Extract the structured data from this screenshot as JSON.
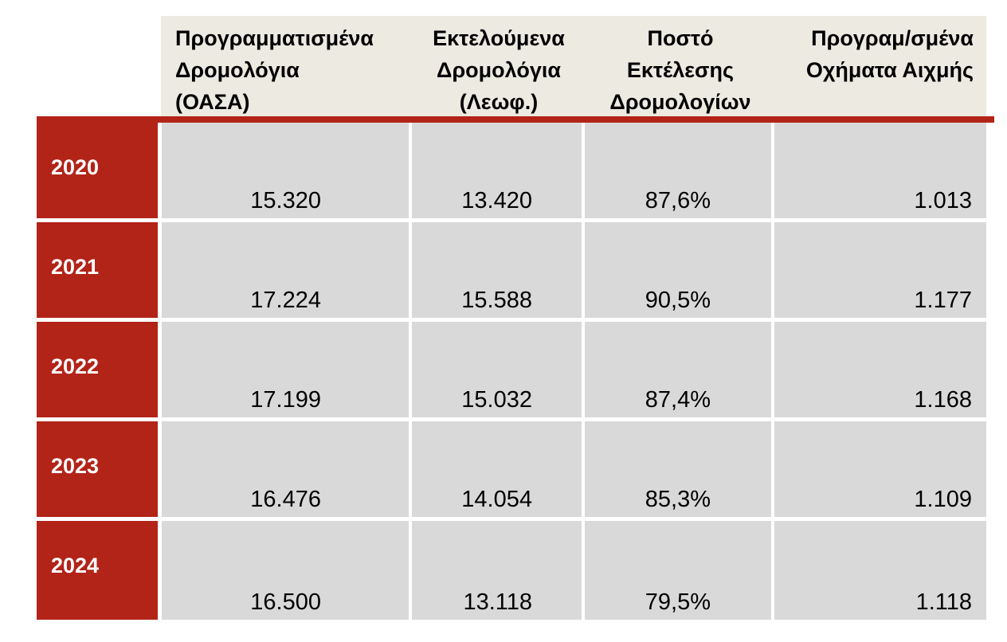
{
  "table": {
    "headers": [
      "Προγραμματισμένα\nΔρομολόγια\n(ΟΑΣΑ)",
      "Εκτελούμενα\nΔρομολόγια\n(Λεωφ.)",
      "Ποστό\nΕκτέλεσης\nΔρομολογίων",
      "Προγραμ/σμένα\nΟχήματα Αιχμής"
    ],
    "rows": [
      {
        "year": "2020",
        "values": [
          "15.320",
          "13.420",
          "87,6%",
          "1.013"
        ]
      },
      {
        "year": "2021",
        "values": [
          "17.224",
          "15.588",
          "90,5%",
          "1.177"
        ]
      },
      {
        "year": "2022",
        "values": [
          "17.199",
          "15.032",
          "87,4%",
          "1.168"
        ]
      },
      {
        "year": "2023",
        "values": [
          "16.476",
          "14.054",
          "85,3%",
          "1.109"
        ]
      },
      {
        "year": "2024",
        "values": [
          "16.500",
          "13.118",
          "79,5%",
          "1.118"
        ]
      }
    ]
  },
  "colors": {
    "accent_red": "#b22318",
    "header_bg": "#edeae2",
    "cell_bg": "#d9d9d9"
  }
}
